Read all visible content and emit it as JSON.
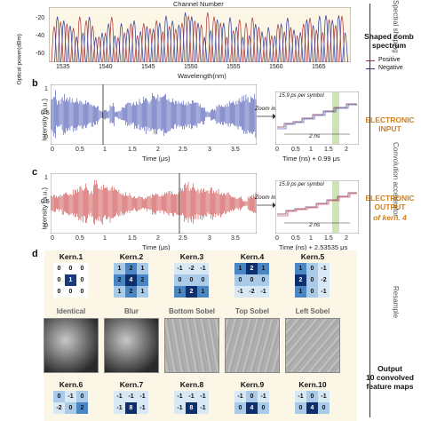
{
  "panel_a": {
    "top_label": "Channel Number",
    "ylabel": "Optical power(dBm)",
    "xlabel": "Wavelength(nm)",
    "xticks": [
      "1535",
      "1540",
      "1545",
      "1550",
      "1555",
      "1560",
      "1565"
    ],
    "yticks": [
      "-20",
      "-40",
      "-60"
    ],
    "side_title": "Shaped comb spectrum",
    "legend": [
      "Positive",
      "Negative"
    ],
    "colors": {
      "positive": "#b03030",
      "negative": "#2a3a9a"
    }
  },
  "panel_b": {
    "letter": "b",
    "ylabel": "Intensity (a.u.)",
    "xlabel": "Time (μs)",
    "xticks": [
      "0",
      "0.5",
      "1",
      "1.5",
      "2",
      "2.5",
      "3",
      "3.5"
    ],
    "yticks": [
      "1",
      "0.5",
      "0"
    ],
    "zoom_label": "Zoom in",
    "symbol_label": "15.9 ps per symbol",
    "span_label": "2 ns",
    "inset_xlabel": "Time (ns) + 0.99 μs",
    "inset_xticks": [
      "0",
      "0.5",
      "1",
      "1.5",
      "2"
    ],
    "side_title": "ELECTRONIC INPUT",
    "color": "#1a2aa0"
  },
  "panel_c": {
    "letter": "c",
    "ylabel": "Intensity (a.u.)",
    "xlabel": "Time (μs)",
    "xticks": [
      "0",
      "0.5",
      "1",
      "1.5",
      "2",
      "2.5",
      "3",
      "3.5"
    ],
    "yticks": [
      "1",
      "0.5",
      "0"
    ],
    "zoom_label": "Zoom in",
    "symbol_label": "15.9 ps per symbol",
    "span_label": "2 ns",
    "inset_xlabel": "Time (ns) + 2.53535 μs",
    "inset_xticks": [
      "0",
      "0.5",
      "1",
      "1.5",
      "2"
    ],
    "side_title_1": "ELECTRONIC OUTPUT",
    "side_title_2": "of kern. 4",
    "color": "#c01818"
  },
  "panel_d": {
    "letter": "d",
    "kernels_top": [
      {
        "title": "Kern.1",
        "name": "Identical",
        "cells": [
          "0",
          "0",
          "0",
          "0",
          "1",
          "0",
          "0",
          "0",
          "0"
        ],
        "colors": [
          "#fff",
          "#fff",
          "#fff",
          "#fff",
          "#1a3a7a",
          "#fff",
          "#fff",
          "#fff",
          "#fff"
        ]
      },
      {
        "title": "Kern.2",
        "name": "Blur",
        "cells": [
          "1",
          "2",
          "1",
          "2",
          "4",
          "2",
          "1",
          "2",
          "1"
        ],
        "colors": [
          "#a9cbe8",
          "#4a86c4",
          "#a9cbe8",
          "#4a86c4",
          "#0e2f6e",
          "#4a86c4",
          "#a9cbe8",
          "#4a86c4",
          "#a9cbe8"
        ]
      },
      {
        "title": "Kern.3",
        "name": "Bottom Sobel",
        "cells": [
          "-1",
          "-2",
          "-1",
          "0",
          "0",
          "0",
          "1",
          "2",
          "1"
        ],
        "colors": [
          "#d9e8f5",
          "#d9e8f5",
          "#d9e8f5",
          "#a9cbe8",
          "#a9cbe8",
          "#a9cbe8",
          "#4a86c4",
          "#0e2f6e",
          "#4a86c4"
        ]
      },
      {
        "title": "Kern.4",
        "name": "Top Sobel",
        "cells": [
          "1",
          "2",
          "1",
          "0",
          "0",
          "0",
          "-1",
          "-2",
          "-1"
        ],
        "colors": [
          "#4a86c4",
          "#0e2f6e",
          "#4a86c4",
          "#a9cbe8",
          "#a9cbe8",
          "#a9cbe8",
          "#d9e8f5",
          "#d9e8f5",
          "#d9e8f5"
        ]
      },
      {
        "title": "Kern.5",
        "name": "Left Sobel",
        "cells": [
          "1",
          "0",
          "-1",
          "2",
          "0",
          "-2",
          "1",
          "0",
          "-1"
        ],
        "colors": [
          "#4a86c4",
          "#a9cbe8",
          "#d9e8f5",
          "#0e2f6e",
          "#a9cbe8",
          "#d9e8f5",
          "#4a86c4",
          "#a9cbe8",
          "#d9e8f5"
        ]
      }
    ],
    "kernels_bottom": [
      {
        "title": "Kern.6",
        "row1": [
          "0",
          "-1",
          "0"
        ],
        "row2": [
          "-2",
          "0",
          "2"
        ]
      },
      {
        "title": "Kern.7",
        "row1": [
          "-1",
          "-1",
          "-1"
        ],
        "row2": [
          "-1",
          "8",
          "-1"
        ]
      },
      {
        "title": "Kern.8",
        "row1": [
          "-1",
          "-1",
          "-1"
        ],
        "row2": [
          "-1",
          "8",
          "-1"
        ]
      },
      {
        "title": "Kern.9",
        "row1": [
          "-1",
          "0",
          "-1"
        ],
        "row2": [
          "0",
          "4",
          "0"
        ]
      },
      {
        "title": "Kern.10",
        "row1": [
          "-1",
          "0",
          "-1"
        ],
        "row2": [
          "0",
          "4",
          "0"
        ]
      }
    ]
  },
  "right_column": {
    "label_top": "Spectral shaping",
    "label_conv": "Convolution accelerator",
    "label_resample": "Resample",
    "output_title_1": "Output",
    "output_title_2": "10 convolved",
    "output_title_3": "feature maps"
  }
}
